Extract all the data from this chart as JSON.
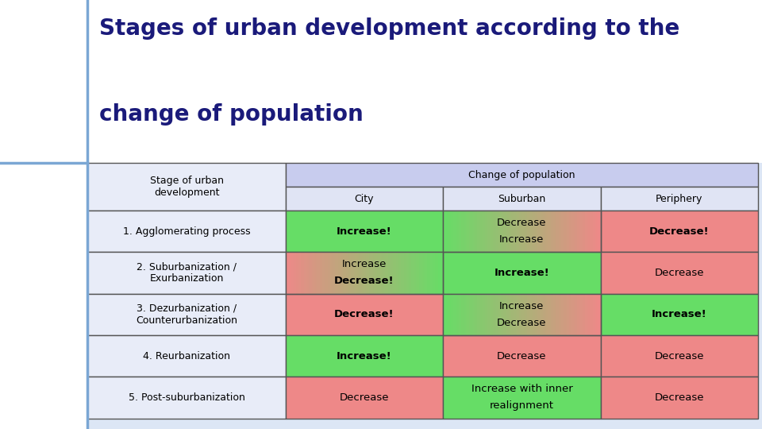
{
  "title_line1": "Stages of urban development according to the",
  "title_line2": "change of population",
  "title_color": "#1a1a7a",
  "bg_color": "#dce6f5",
  "header_top_bg": "#c8ccee",
  "header_sub_bg": "#e0e4f4",
  "stage_col_bg": "#e8ecf8",
  "white_left_bg": "#ffffff",
  "green": "#66dd66",
  "red": "#ee8888",
  "rows": [
    {
      "stage": "1. Agglomerating process",
      "city_text": "Increase!",
      "city_bold": true,
      "city_color": "#66dd66",
      "suburban_text": "Decrease\nIncrease",
      "suburban_bold": false,
      "suburban_color": "mixed_gr",
      "periphery_text": "Decrease!",
      "periphery_bold": true,
      "periphery_color": "#ee8888"
    },
    {
      "stage": "2. Suburbanization /\nExurbanization",
      "city_text": "Increase\nDecrease!",
      "city_bold_second": true,
      "city_color": "mixed_rg",
      "suburban_text": "Increase!",
      "suburban_bold": true,
      "suburban_color": "#66dd66",
      "periphery_text": "Decrease",
      "periphery_bold": false,
      "periphery_color": "#ee8888"
    },
    {
      "stage": "3. Dezurbanization /\nCounterurbanization",
      "city_text": "Decrease!",
      "city_bold": true,
      "city_color": "#ee8888",
      "suburban_text": "Increase\nDecrease",
      "suburban_bold": false,
      "suburban_color": "mixed_gr",
      "periphery_text": "Increase!",
      "periphery_bold": true,
      "periphery_color": "#66dd66"
    },
    {
      "stage": "4. Reurbanization",
      "city_text": "Increase!",
      "city_bold": true,
      "city_color": "#66dd66",
      "suburban_text": "Decrease",
      "suburban_bold": false,
      "suburban_color": "#ee8888",
      "periphery_text": "Decrease",
      "periphery_bold": false,
      "periphery_color": "#ee8888"
    },
    {
      "stage": "5. Post-suburbanization",
      "city_text": "Decrease",
      "city_bold": false,
      "city_color": "#ee8888",
      "suburban_text": "Increase with inner\nrealignment",
      "suburban_bold": false,
      "suburban_color": "#66dd66",
      "periphery_text": "Decrease",
      "periphery_bold": false,
      "periphery_color": "#ee8888"
    }
  ]
}
